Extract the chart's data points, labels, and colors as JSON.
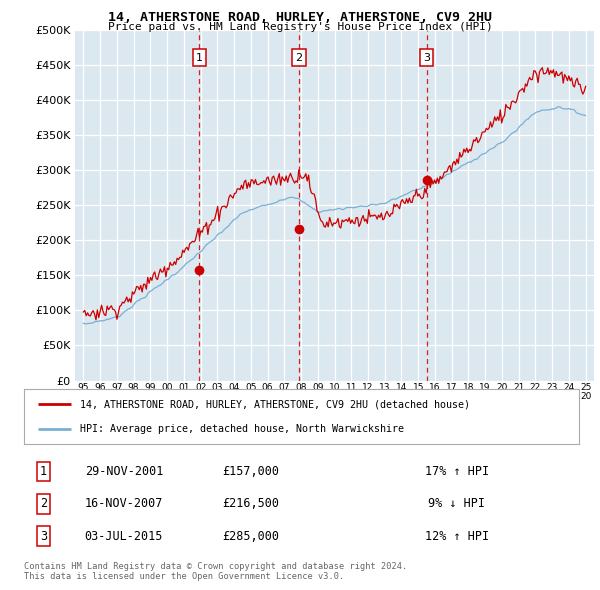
{
  "title": "14, ATHERSTONE ROAD, HURLEY, ATHERSTONE, CV9 2HU",
  "subtitle": "Price paid vs. HM Land Registry's House Price Index (HPI)",
  "ylabel_ticks": [
    "£0",
    "£50K",
    "£100K",
    "£150K",
    "£200K",
    "£250K",
    "£300K",
    "£350K",
    "£400K",
    "£450K",
    "£500K"
  ],
  "ytick_values": [
    0,
    50000,
    100000,
    150000,
    200000,
    250000,
    300000,
    350000,
    400000,
    450000,
    500000
  ],
  "ylim": [
    0,
    500000
  ],
  "xlim_start": 1994.5,
  "xlim_end": 2025.5,
  "background_color": "#dce8f0",
  "grid_color": "#ffffff",
  "red_color": "#cc0000",
  "blue_color": "#7bafd4",
  "sale_points": [
    {
      "num": 1,
      "year": 2001.916,
      "price": 157000,
      "date": "29-NOV-2001",
      "pct": "17%",
      "dir": "↑"
    },
    {
      "num": 2,
      "year": 2007.875,
      "price": 216500,
      "date": "16-NOV-2007",
      "pct": "9%",
      "dir": "↓"
    },
    {
      "num": 3,
      "year": 2015.5,
      "price": 285000,
      "date": "03-JUL-2015",
      "pct": "12%",
      "dir": "↑"
    }
  ],
  "legend_line1": "14, ATHERSTONE ROAD, HURLEY, ATHERSTONE, CV9 2HU (detached house)",
  "legend_line2": "HPI: Average price, detached house, North Warwickshire",
  "footer1": "Contains HM Land Registry data © Crown copyright and database right 2024.",
  "footer2": "This data is licensed under the Open Government Licence v3.0.",
  "table_rows": [
    {
      "num": "1",
      "date": "29-NOV-2001",
      "price": "£157,000",
      "pct": "17% ↑ HPI"
    },
    {
      "num": "2",
      "date": "16-NOV-2007",
      "price": "£216,500",
      "pct": "9% ↓ HPI"
    },
    {
      "num": "3",
      "date": "03-JUL-2015",
      "price": "£285,000",
      "pct": "12% ↑ HPI"
    }
  ]
}
